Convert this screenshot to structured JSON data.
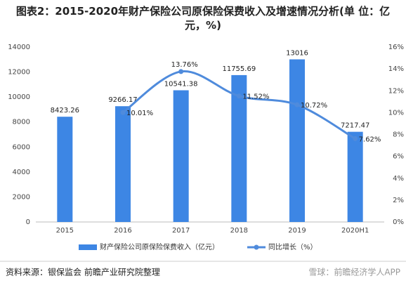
{
  "chart_data": {
    "type": "bar-line",
    "title": "图表2：2015-2020年财产保险公司原保险保费收入及增速情况分析(单 位：亿元，%)",
    "categories": [
      "2015",
      "2016",
      "2017",
      "2018",
      "2019",
      "2020H1"
    ],
    "series": [
      {
        "name": "财产保险公司原保险保费收入（亿元）",
        "type": "bar",
        "color": "#3d86e4",
        "values": [
          8423.26,
          9266.17,
          10541.38,
          11755.69,
          13016,
          7217.47
        ]
      },
      {
        "name": "同比增长（%）",
        "type": "line",
        "axis": "y2",
        "color": "#4f8bdc",
        "values": [
          null,
          10.01,
          13.76,
          11.52,
          10.72,
          7.62
        ],
        "value_labels": [
          null,
          "10.01%",
          "13.76%",
          "11.52%",
          "10.72%",
          "7.62%"
        ]
      }
    ],
    "ylim": [
      0,
      14000
    ],
    "yticks": [
      0,
      2000,
      4000,
      6000,
      8000,
      10000,
      12000,
      14000
    ],
    "y2lim": [
      0,
      16
    ],
    "y2ticks": [
      {
        "value": 0,
        "label": "0%"
      },
      {
        "value": 2,
        "label": "2%"
      },
      {
        "value": 4,
        "label": "4%"
      },
      {
        "value": 6,
        "label": "6%"
      },
      {
        "value": 8,
        "label": "8%"
      },
      {
        "value": 10,
        "label": "10%"
      },
      {
        "value": 12,
        "label": "12%"
      },
      {
        "value": 14,
        "label": "14%"
      },
      {
        "value": 16,
        "label": "16%"
      }
    ],
    "grid": false,
    "legend": "bottom",
    "source": "资料来源：银保监会 前瞻产业研究院整理",
    "watermark": "雪球：前瞻经济学人APP"
  }
}
